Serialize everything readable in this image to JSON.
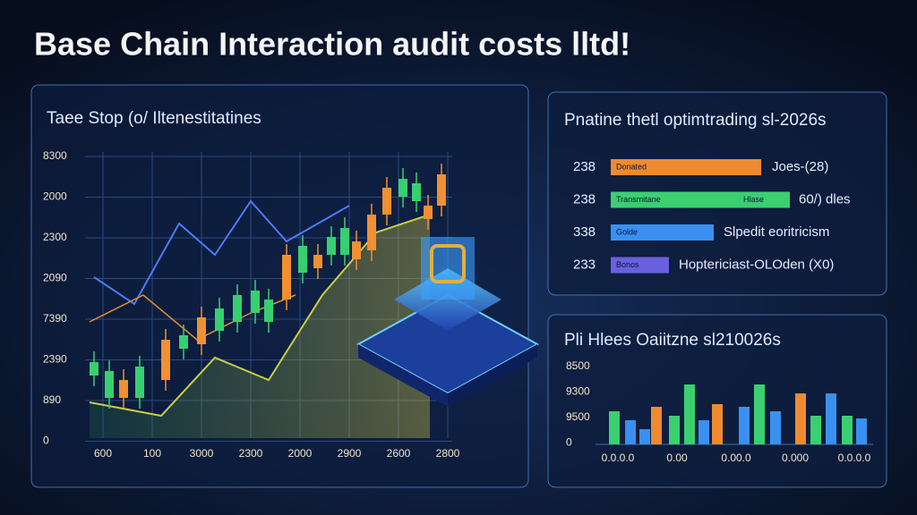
{
  "header": {
    "title": "Base Chain Interaction audit costs lltd!"
  },
  "left_panel": {
    "title": "Taee Stop (o/ Iltenestitatines",
    "y_labels": [
      "8300",
      "2000",
      "2300",
      "2090",
      "7390",
      "2390",
      "890",
      "0"
    ],
    "x_labels": [
      "600",
      "100",
      "3000",
      "2300",
      "2000",
      "2900",
      "2600",
      "2800"
    ]
  },
  "right_top_panel": {
    "title": "Pnatine thetl optimtrading sl-2026s",
    "rows": [
      {
        "left": "238",
        "bar": "Donated",
        "right": "Joes-(28)"
      },
      {
        "left": "238",
        "bar": "Transmitane",
        "tag": "Hlase",
        "right": "60/) dles"
      },
      {
        "left": "338",
        "bar": "Golde",
        "right": "Slpedit eoritricism"
      },
      {
        "left": "233",
        "bar": "Bonos",
        "right": "Hoptericiast-OLOden (X0)"
      }
    ]
  },
  "right_bottom_panel": {
    "title": "Pli Hlees Oaiitzne sl210026s",
    "y_labels": [
      "8500",
      "9300",
      "9500",
      "0"
    ],
    "x_labels": [
      "0.0.0.0",
      "0.00",
      "0.00.0",
      "0.000",
      "0.0.0.0"
    ]
  }
}
